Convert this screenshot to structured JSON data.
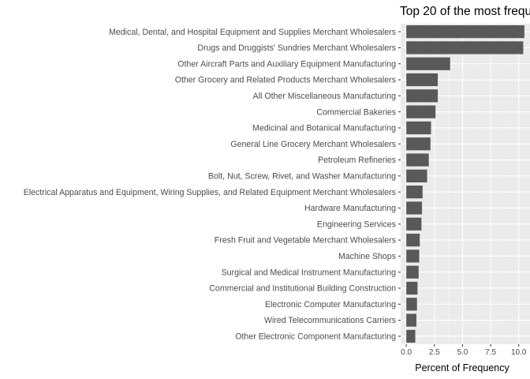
{
  "chart_data": {
    "type": "bar",
    "orientation": "horizontal",
    "title": "Top 20 of the most frequ",
    "xlabel": "Percent of Frequency",
    "ylabel": "",
    "categories": [
      "Medical, Dental, and Hospital Equipment and Supplies Merchant Wholesalers",
      "Drugs and Druggists' Sundries Merchant Wholesalers",
      "Other Aircraft Parts and Auxiliary Equipment Manufacturing",
      "Other Grocery and Related Products Merchant Wholesalers",
      "All Other Miscellaneous Manufacturing",
      "Commercial Bakeries",
      "Medicinal and Botanical Manufacturing",
      "General Line Grocery Merchant Wholesalers",
      "Petroleum Refineries",
      "Bolt, Nut, Screw, Rivet, and Washer Manufacturing",
      "Electrical Apparatus and Equipment, Wiring Supplies, and Related Equipment Merchant Wholesalers",
      "Hardware Manufacturing",
      "Engineering Services",
      "Fresh Fruit and Vegetable Merchant Wholesalers",
      "Machine Shops",
      "Surgical and Medical Instrument Manufacturing",
      "Commercial and Institutional Building Construction",
      "Electronic Computer Manufacturing",
      "Wired Telecommunications Carriers",
      "Other Electronic Component Manufacturing"
    ],
    "values": [
      10.5,
      10.4,
      3.9,
      2.8,
      2.8,
      2.6,
      2.2,
      2.15,
      2.0,
      1.85,
      1.45,
      1.4,
      1.35,
      1.2,
      1.15,
      1.1,
      1.0,
      0.95,
      0.9,
      0.8
    ],
    "xticks": [
      "0.0",
      "2.5",
      "5.0",
      "7.5",
      "10.0"
    ],
    "xtick_values": [
      0,
      2.5,
      5,
      7.5,
      10
    ],
    "xlim": [
      -0.5,
      11.0
    ],
    "grid": true,
    "colors": {
      "bar": "#595959",
      "panel": "#ebebeb",
      "grid_major": "#ffffff",
      "grid_minor": "#f2f2f2",
      "text": "#4d4d4d",
      "tick": "#333333"
    }
  }
}
